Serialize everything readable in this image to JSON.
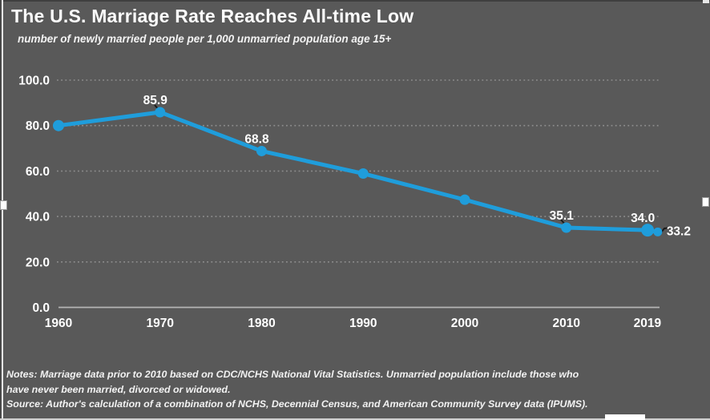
{
  "colors": {
    "background": "#595959",
    "line": "#1F9DDB",
    "text": "#FFFFFF",
    "gridline": "#A0A0A0",
    "axis": "#B5B5B5",
    "leader": "#1A1A1A"
  },
  "notes": {
    "line1": "Notes: Marriage data prior to 2010 based on CDC/NCHS National Vital Statistics. Unmarried population include those who",
    "line2": "have never been married, divorced or widowed.",
    "source": "Source: Author's calculation of a combination of NCHS, Decennial Census, and American Community Survey data (IPUMS)."
  },
  "chart_data": {
    "type": "line",
    "title": "The U.S. Marriage Rate Reaches All-time Low",
    "subtitle": "number of newly married people per 1,000 unmarried population age 15+",
    "x": [
      1960,
      1970,
      1980,
      1990,
      2000,
      2010,
      2018,
      2019
    ],
    "values": [
      80.0,
      85.9,
      68.8,
      58.9,
      47.4,
      35.1,
      34.0,
      33.2
    ],
    "point_labels": [
      "",
      "85.9",
      "68.8",
      "",
      "",
      "35.1",
      "34.0",
      "33.2"
    ],
    "label_positions": [
      null,
      "above",
      "above",
      null,
      null,
      "above",
      "above",
      "right"
    ],
    "x_ticks": [
      1960,
      1970,
      1980,
      1990,
      2000,
      2010,
      2019
    ],
    "x_tick_labels": [
      "1960",
      "1970",
      "1980",
      "1990",
      "2000",
      "2010",
      "2019"
    ],
    "y_ticks": [
      0,
      20,
      40,
      60,
      80,
      100
    ],
    "y_tick_labels": [
      "0.0",
      "20.0",
      "40.0",
      "60.0",
      "80.0",
      "100.0"
    ],
    "ylim": [
      0,
      100
    ],
    "xlabel": "",
    "ylabel": "",
    "grid": "horizontal-dotted",
    "legend": "none",
    "marker": "filled-circle"
  }
}
